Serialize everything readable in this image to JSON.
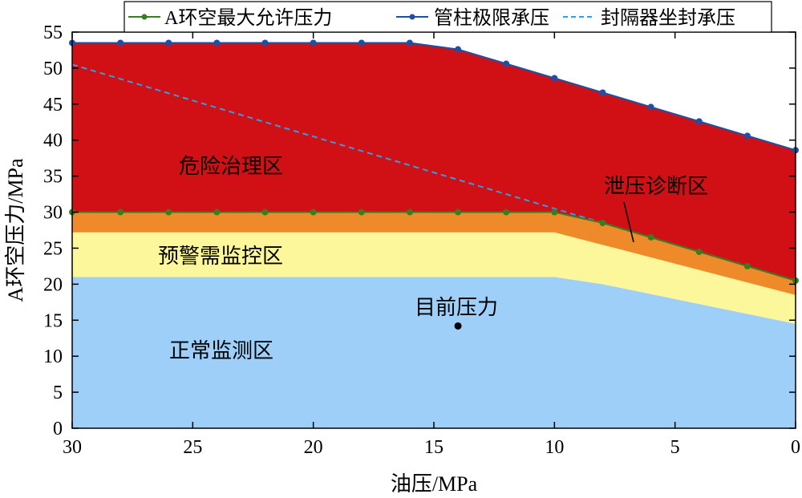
{
  "chart_data": {
    "type": "area",
    "title": "",
    "xlabel": "油压/MPa",
    "ylabel": "A环空压力/MPa",
    "xlim": [
      30,
      0
    ],
    "ylim": [
      0,
      55
    ],
    "x_reversed": true,
    "x_ticks": [
      30,
      25,
      20,
      15,
      10,
      5,
      0
    ],
    "y_ticks": [
      0,
      5,
      10,
      15,
      20,
      25,
      30,
      35,
      40,
      45,
      50,
      55
    ],
    "grid": false,
    "legend_position": "top",
    "legend": [
      {
        "label": "A环空最大允许压力",
        "color": "#3a7d1e",
        "style": "solid-marker"
      },
      {
        "label": "管柱极限承压",
        "color": "#1f4fa3",
        "style": "solid-marker"
      },
      {
        "label": "封隔器坐封承压",
        "color": "#2aa0e8",
        "style": "dashed"
      }
    ],
    "series": [
      {
        "name": "A环空最大允许压力",
        "color": "#3a7d1e",
        "x": [
          30,
          28,
          26,
          24,
          22,
          20,
          18,
          16,
          14,
          12,
          10,
          8,
          6,
          4,
          2,
          0
        ],
        "values": [
          30,
          30,
          30,
          30,
          30,
          30,
          30,
          30,
          30,
          30,
          30,
          28.5,
          26.5,
          24.5,
          22.5,
          20.5
        ]
      },
      {
        "name": "管柱极限承压",
        "color": "#1f4fa3",
        "x": [
          30,
          28,
          26,
          24,
          22,
          20,
          18,
          16,
          14,
          12,
          10,
          8,
          6,
          4,
          2,
          0
        ],
        "values": [
          53.5,
          53.5,
          53.5,
          53.5,
          53.5,
          53.5,
          53.5,
          53.5,
          52.6,
          50.6,
          48.6,
          46.6,
          44.6,
          42.6,
          40.6,
          38.6
        ]
      },
      {
        "name": "封隔器坐封承压",
        "color": "#2aa0e8",
        "x": [
          30,
          0
        ],
        "values": [
          50.5,
          20.5
        ]
      }
    ],
    "zones": [
      {
        "label": "危险治理区",
        "color": "#d11016"
      },
      {
        "label": "泄压诊断区",
        "color": "#ef8a2b"
      },
      {
        "label": "预警需监控区",
        "color": "#fdf79b"
      },
      {
        "label": "正常监测区",
        "color": "#9dcff9"
      }
    ],
    "zone_boundaries": {
      "orange_bottom": {
        "x": [
          30,
          10,
          0
        ],
        "values": [
          27.2,
          27.2,
          18.5
        ]
      },
      "yellow_bottom": {
        "x": [
          30,
          10,
          8,
          0
        ],
        "values": [
          21,
          21,
          20,
          14.5
        ]
      }
    },
    "current_point": {
      "label": "目前压力",
      "x": 14,
      "y": 14.2,
      "color": "#000000"
    }
  }
}
